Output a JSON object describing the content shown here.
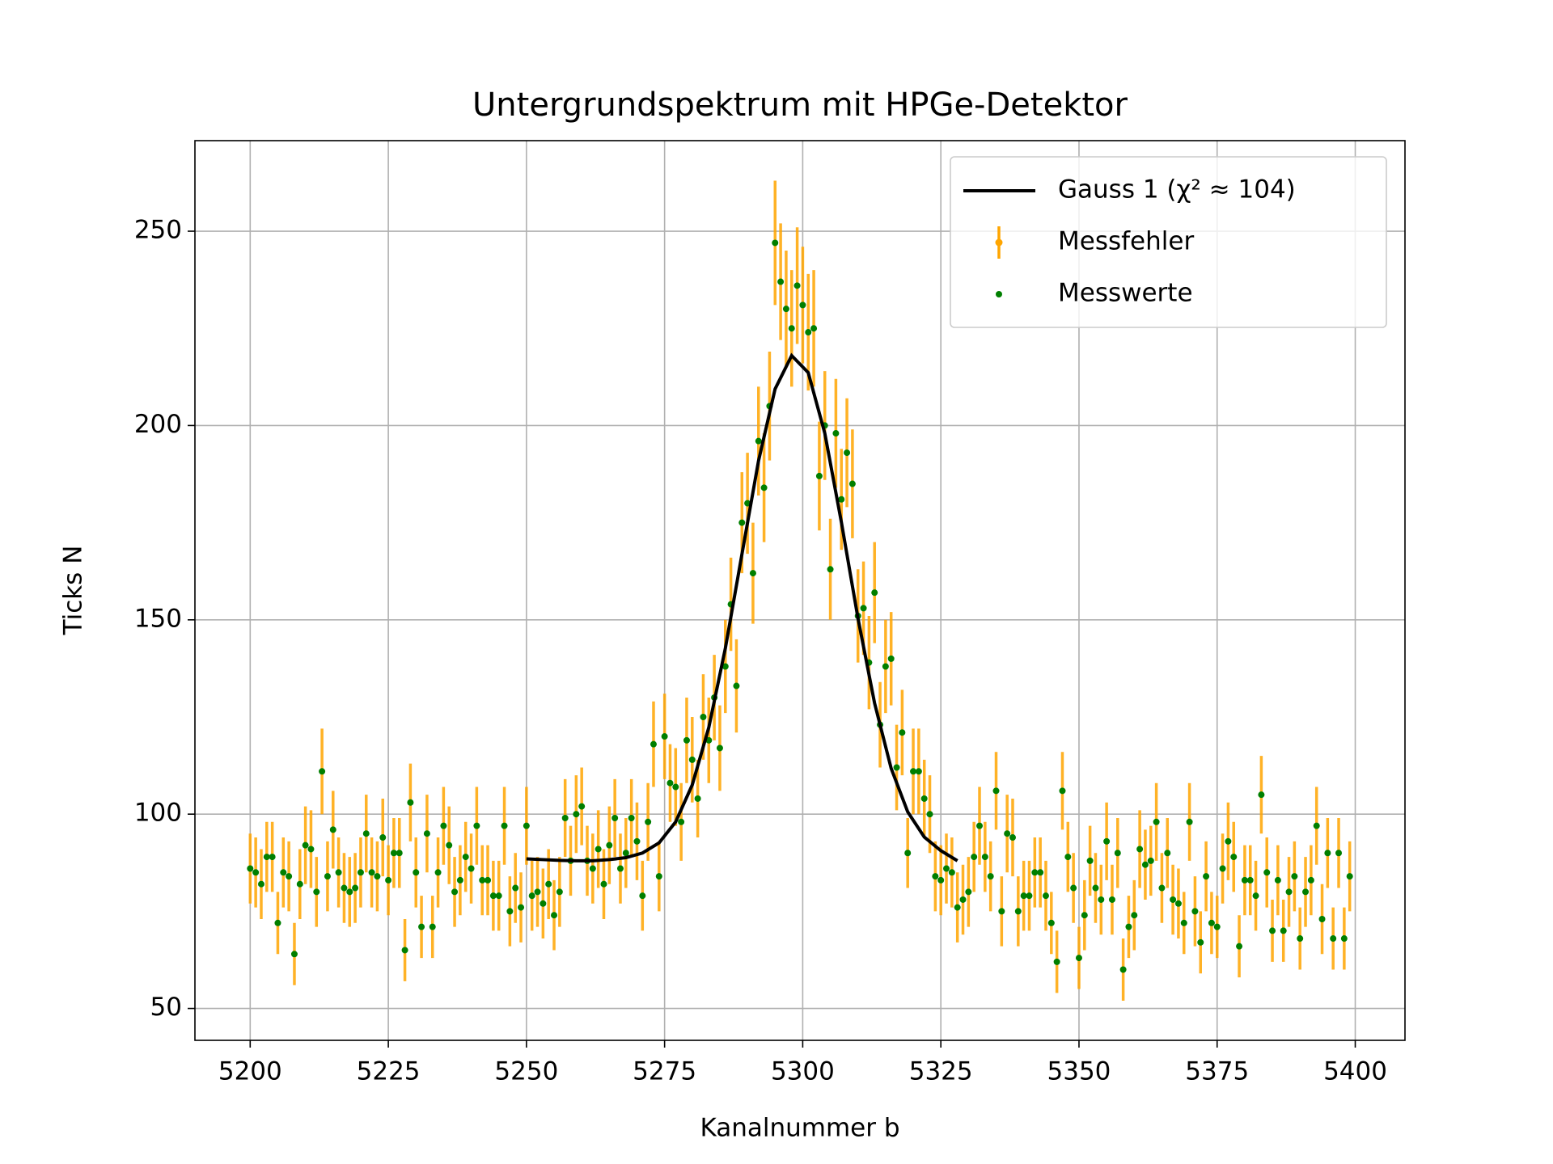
{
  "chart_data": {
    "type": "errorbar_scatter",
    "title": "Untergrundspektrum mit HPGe-Detektor",
    "xlabel": "Kanalnummer b",
    "ylabel": "Ticks N",
    "xlim": [
      5190,
      5409
    ],
    "ylim": [
      41.8,
      273.3
    ],
    "xticks": [
      5200,
      5225,
      5250,
      5275,
      5300,
      5325,
      5350,
      5375,
      5400
    ],
    "yticks": [
      50,
      100,
      150,
      200,
      250
    ],
    "grid": true,
    "legend": "upper right",
    "series": [
      {
        "name": "Gauss 1 (χ² ≈ 104)",
        "kind": "line",
        "color": "#000000",
        "x": [
          5250,
          5253,
          5256,
          5259,
          5262,
          5265,
          5268,
          5271,
          5274,
          5277,
          5280,
          5283,
          5286,
          5289,
          5292,
          5295,
          5298,
          5301,
          5304,
          5307,
          5310,
          5313,
          5316,
          5319,
          5322,
          5325,
          5328
        ],
        "values": [
          88.5,
          88.3,
          88.1,
          88.0,
          88.0,
          88.3,
          88.8,
          90.0,
          92.6,
          98.0,
          107.5,
          122.3,
          142.7,
          166.9,
          190.9,
          209.4,
          218.0,
          213.6,
          198.0,
          175.1,
          150.4,
          128.6,
          111.8,
          100.6,
          94.1,
          90.6,
          88.0
        ]
      },
      {
        "name": "Messfehler",
        "kind": "errorbar",
        "color": "#ffa500"
      },
      {
        "name": "Messwerte",
        "kind": "points",
        "color": "#007f00",
        "x": [
          5200,
          5201,
          5202,
          5203,
          5204,
          5205,
          5206,
          5207,
          5208,
          5209,
          5210,
          5211,
          5212,
          5213,
          5214,
          5215,
          5216,
          5217,
          5218,
          5219,
          5220,
          5221,
          5222,
          5223,
          5224,
          5225,
          5226,
          5227,
          5228,
          5229,
          5230,
          5231,
          5232,
          5233,
          5234,
          5235,
          5236,
          5237,
          5238,
          5239,
          5240,
          5241,
          5242,
          5243,
          5244,
          5245,
          5246,
          5247,
          5248,
          5249,
          5250,
          5251,
          5252,
          5253,
          5254,
          5255,
          5256,
          5257,
          5258,
          5259,
          5260,
          5261,
          5262,
          5263,
          5264,
          5265,
          5266,
          5267,
          5268,
          5269,
          5270,
          5271,
          5272,
          5273,
          5274,
          5275,
          5276,
          5277,
          5278,
          5279,
          5280,
          5281,
          5282,
          5283,
          5284,
          5285,
          5286,
          5287,
          5288,
          5289,
          5290,
          5291,
          5292,
          5293,
          5294,
          5295,
          5296,
          5297,
          5298,
          5299,
          5300,
          5301,
          5302,
          5303,
          5304,
          5305,
          5306,
          5307,
          5308,
          5309,
          5310,
          5311,
          5312,
          5313,
          5314,
          5315,
          5316,
          5317,
          5318,
          5319,
          5320,
          5321,
          5322,
          5323,
          5324,
          5325,
          5326,
          5327,
          5328,
          5329,
          5330,
          5331,
          5332,
          5333,
          5334,
          5335,
          5336,
          5337,
          5338,
          5339,
          5340,
          5341,
          5342,
          5343,
          5344,
          5345,
          5346,
          5347,
          5348,
          5349,
          5350,
          5351,
          5352,
          5353,
          5354,
          5355,
          5356,
          5357,
          5358,
          5359,
          5360,
          5361,
          5362,
          5363,
          5364,
          5365,
          5366,
          5367,
          5368,
          5369,
          5370,
          5371,
          5372,
          5373,
          5374,
          5375,
          5376,
          5377,
          5378,
          5379,
          5380,
          5381,
          5382,
          5383,
          5384,
          5385,
          5386,
          5387,
          5388,
          5389,
          5390,
          5391,
          5392,
          5393,
          5394,
          5395,
          5396,
          5397,
          5398,
          5399
        ],
        "values": [
          86,
          85,
          82,
          89,
          89,
          72,
          85,
          84,
          64,
          82,
          92,
          91,
          80,
          111,
          84,
          96,
          85,
          81,
          80,
          81,
          85,
          95,
          85,
          84,
          94,
          83,
          90,
          90,
          65,
          103,
          85,
          71,
          95,
          71,
          85,
          97,
          92,
          80,
          83,
          89,
          86,
          97,
          83,
          83,
          79,
          79,
          97,
          75,
          81,
          76,
          97,
          79,
          80,
          77,
          82,
          74,
          80,
          99,
          88,
          100,
          102,
          88,
          86,
          91,
          82,
          92,
          99,
          86,
          90,
          99,
          93,
          79,
          98,
          118,
          84,
          120,
          108,
          107,
          98,
          119,
          114,
          104,
          125,
          119,
          130,
          117,
          138,
          154,
          133,
          175,
          180,
          162,
          196,
          184,
          205,
          247,
          237,
          230,
          225,
          236,
          231,
          224,
          225,
          187,
          200,
          163,
          198,
          181,
          193,
          185,
          151,
          153,
          139,
          157,
          123,
          138,
          140,
          112,
          121,
          90,
          111,
          111,
          104,
          100,
          84,
          83,
          86,
          85,
          76,
          78,
          80,
          89,
          97,
          89,
          84,
          106,
          75,
          95,
          94,
          75,
          79,
          79,
          85,
          85,
          79,
          72,
          62,
          106,
          89,
          81,
          63,
          74,
          88,
          81,
          78,
          93,
          78,
          90,
          60,
          71,
          74,
          91,
          87,
          88,
          98,
          81,
          90,
          78,
          77,
          72,
          98,
          75,
          67,
          84,
          72,
          71,
          86,
          93,
          89,
          66,
          83,
          83,
          79,
          105,
          85,
          70,
          83,
          70,
          80,
          84,
          68,
          80,
          83,
          97,
          73,
          90,
          68,
          90,
          68,
          84
        ],
        "errors": [
          9,
          9,
          9,
          9,
          9,
          8,
          9,
          9,
          8,
          9,
          10,
          10,
          9,
          11,
          9,
          10,
          9,
          9,
          9,
          9,
          9,
          10,
          9,
          9,
          10,
          9,
          9,
          9,
          8,
          10,
          9,
          8,
          10,
          8,
          9,
          10,
          10,
          9,
          9,
          9,
          9,
          10,
          9,
          9,
          9,
          9,
          10,
          9,
          9,
          9,
          10,
          9,
          9,
          9,
          9,
          9,
          9,
          10,
          9,
          10,
          10,
          9,
          9,
          10,
          9,
          10,
          10,
          9,
          9,
          10,
          10,
          9,
          10,
          11,
          9,
          11,
          10,
          10,
          10,
          11,
          11,
          10,
          11,
          11,
          11,
          11,
          12,
          12,
          12,
          13,
          13,
          13,
          14,
          14,
          14,
          16,
          15,
          15,
          15,
          15,
          15,
          15,
          15,
          14,
          14,
          13,
          14,
          13,
          14,
          14,
          12,
          12,
          12,
          13,
          11,
          12,
          12,
          11,
          11,
          9,
          11,
          11,
          10,
          10,
          9,
          9,
          9,
          9,
          9,
          9,
          9,
          9,
          10,
          9,
          9,
          10,
          9,
          10,
          10,
          9,
          9,
          9,
          9,
          9,
          9,
          8,
          8,
          10,
          9,
          9,
          8,
          9,
          9,
          9,
          9,
          10,
          9,
          9,
          8,
          8,
          9,
          10,
          9,
          9,
          10,
          9,
          9,
          9,
          9,
          8,
          10,
          9,
          8,
          9,
          8,
          8,
          9,
          10,
          9,
          8,
          9,
          9,
          9,
          10,
          9,
          8,
          9,
          8,
          9,
          9,
          8,
          9,
          9,
          10,
          9,
          9,
          8,
          9,
          8,
          9
        ]
      }
    ]
  }
}
